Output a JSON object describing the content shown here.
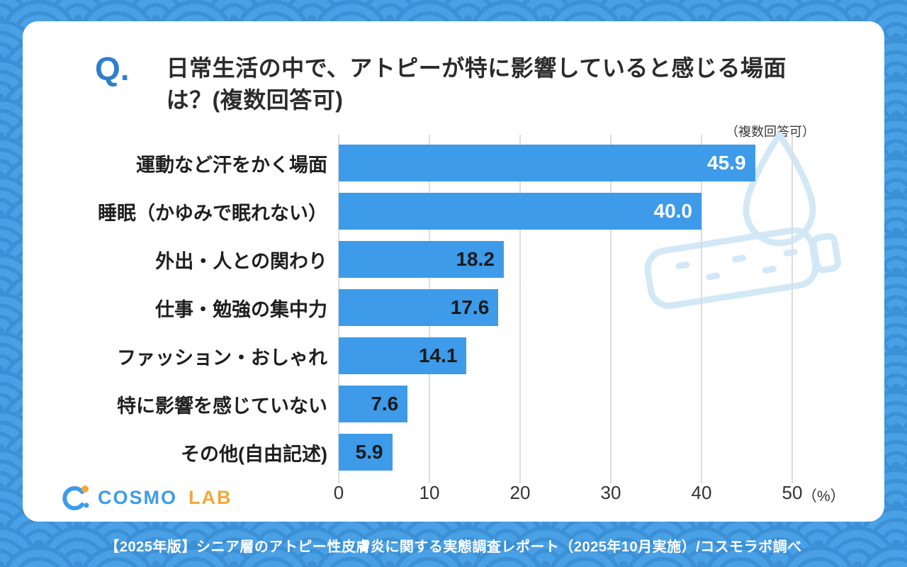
{
  "header": {
    "q_label": "Q.",
    "title_line1": "日常生活の中で、アトピーが特に影響していると感じる場面",
    "title_line2": "は？(複数回答可)",
    "subnote": "（複数回答可）"
  },
  "chart_data": {
    "type": "bar",
    "orientation": "horizontal",
    "title": "日常生活の中で、アトピーが特に影響していると感じる場面は？(複数回答可)",
    "categories": [
      "運動など汗をかく場面",
      "睡眠（かゆみで眠れない）",
      "外出・人との関わり",
      "仕事・勉強の集中力",
      "ファッション・おしゃれ",
      "特に影響を感じていない",
      "その他(自由記述)"
    ],
    "values": [
      45.9,
      40.0,
      18.2,
      17.6,
      14.1,
      7.6,
      5.9
    ],
    "value_labels": [
      "45.9",
      "40.0",
      "18.2",
      "17.6",
      "14.1",
      "7.6",
      "5.9"
    ],
    "value_label_inside_white": [
      true,
      true,
      false,
      false,
      false,
      false,
      false
    ],
    "xlim": [
      0,
      50
    ],
    "xticks": [
      0,
      10,
      20,
      30,
      40,
      50
    ],
    "x_unit": "（%）",
    "grid": true,
    "legend": false
  },
  "logo": {
    "brand": "COSMO",
    "lab": "LAB"
  },
  "footer": {
    "text": "【2025年版】シニア層のアトピー性皮膚炎に関する実態調査レポート（2025年10月実施）/コスモラボ調べ"
  },
  "colors": {
    "bar": "#3D9BE9",
    "background": "#49A0E5",
    "pattern_line": "#3B90D6",
    "q_accent": "#2E7ED0",
    "title_text": "#2B2B2B",
    "value_label_light": "#FFFFFF",
    "value_label_dark": "#1A1A1A",
    "grid_line": "#DCDCDC",
    "logo_blue": "#3D9BE9",
    "logo_orange": "#F2A83B",
    "watermark": "#D3E8F7",
    "footer_text": "#FFFFFF"
  }
}
